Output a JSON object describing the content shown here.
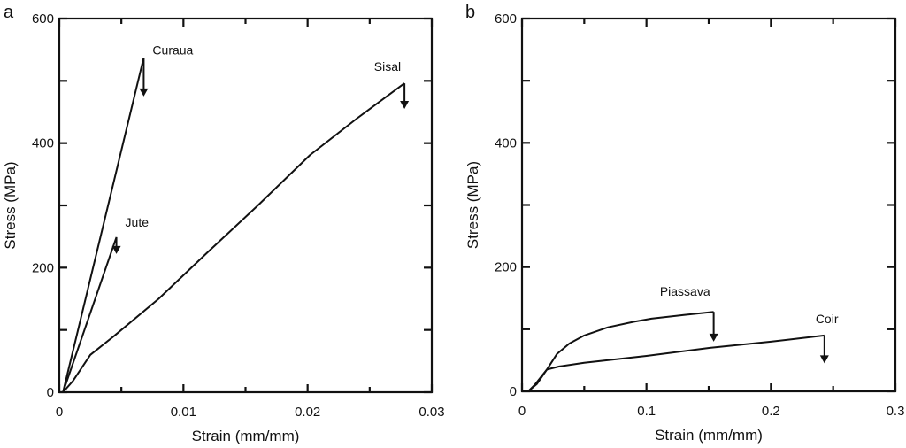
{
  "chart_data": [
    {
      "type": "line",
      "panel_label": "a",
      "xlabel": "Strain (mm/mm)",
      "ylabel": "Stress (MPa)",
      "xlim": [
        0,
        0.03
      ],
      "ylim": [
        0,
        600
      ],
      "xticks": [
        0,
        0.01,
        0.02,
        0.03
      ],
      "xtick_labels": [
        "0",
        "0.01",
        "0.02",
        "0.03"
      ],
      "yticks": [
        0,
        200,
        400,
        600
      ],
      "ytick_labels": [
        "0",
        "200",
        "400",
        "600"
      ],
      "grid": false,
      "series": [
        {
          "name": "Curaua",
          "x": [
            0.0003,
            0.0068
          ],
          "y": [
            0,
            537
          ],
          "failure_arrow_to": 475
        },
        {
          "name": "Jute",
          "x": [
            0.0003,
            0.0046
          ],
          "y": [
            0,
            249
          ],
          "failure_arrow_to": 222
        },
        {
          "name": "Sisal",
          "x": [
            0.0003,
            0.0011,
            0.0025,
            0.0044,
            0.008,
            0.0118,
            0.016,
            0.0202,
            0.024,
            0.0278
          ],
          "y": [
            0,
            18,
            60,
            90,
            150,
            222,
            300,
            381,
            440,
            496
          ],
          "failure_arrow_to": 455
        }
      ]
    },
    {
      "type": "line",
      "panel_label": "b",
      "xlabel": "Strain (mm/mm)",
      "ylabel": "Stress (MPa)",
      "xlim": [
        0,
        0.3
      ],
      "ylim": [
        0,
        600
      ],
      "xticks": [
        0,
        0.1,
        0.2,
        0.3
      ],
      "xtick_labels": [
        "0",
        "0.1",
        "0.2",
        "0.3"
      ],
      "yticks": [
        0,
        200,
        400,
        600
      ],
      "ytick_labels": [
        "0",
        "200",
        "400",
        "600"
      ],
      "grid": false,
      "series": [
        {
          "name": "Piassava",
          "x": [
            0.005,
            0.012,
            0.02,
            0.028,
            0.038,
            0.05,
            0.069,
            0.09,
            0.104,
            0.13,
            0.154
          ],
          "y": [
            0,
            12,
            35,
            60,
            77,
            90,
            103,
            112,
            117,
            123,
            128
          ],
          "failure_arrow_to": 80
        },
        {
          "name": "Coir",
          "x": [
            0.005,
            0.01,
            0.02,
            0.03,
            0.05,
            0.1,
            0.151,
            0.2,
            0.243
          ],
          "y": [
            0,
            10,
            35,
            40,
            46,
            57,
            70,
            80,
            90
          ],
          "failure_arrow_to": 45
        }
      ]
    }
  ]
}
